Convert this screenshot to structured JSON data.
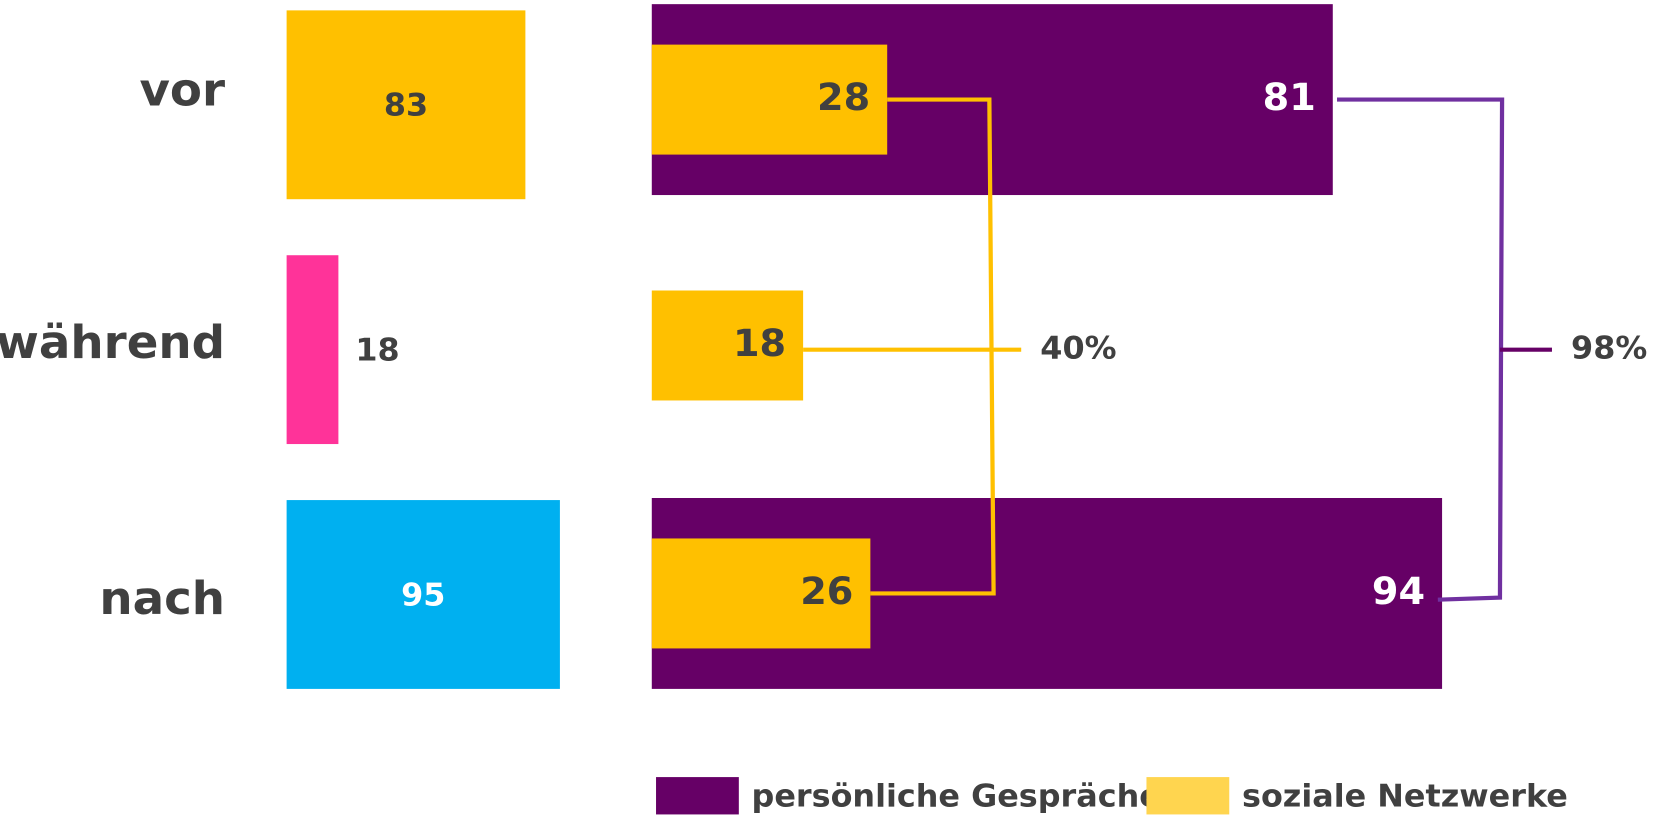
{
  "chart_data": [
    {
      "type": "bar",
      "categories": [
        "vor",
        "während",
        "nach"
      ],
      "values": [
        83,
        18,
        95
      ],
      "colors": [
        "#FFC000",
        "#FF3399",
        "#00B0F0"
      ]
    },
    {
      "type": "overlay-bar",
      "categories": [
        "vor",
        "während",
        "nach"
      ],
      "series": [
        {
          "name": "persönliche Gespräche",
          "color": "#660066",
          "values": [
            81,
            null,
            94
          ]
        },
        {
          "name": "soziale Netzwerke",
          "color": "#FFC000",
          "values": [
            28,
            18,
            26
          ]
        }
      ],
      "annotations": [
        "40%",
        "98%"
      ]
    }
  ]
}
